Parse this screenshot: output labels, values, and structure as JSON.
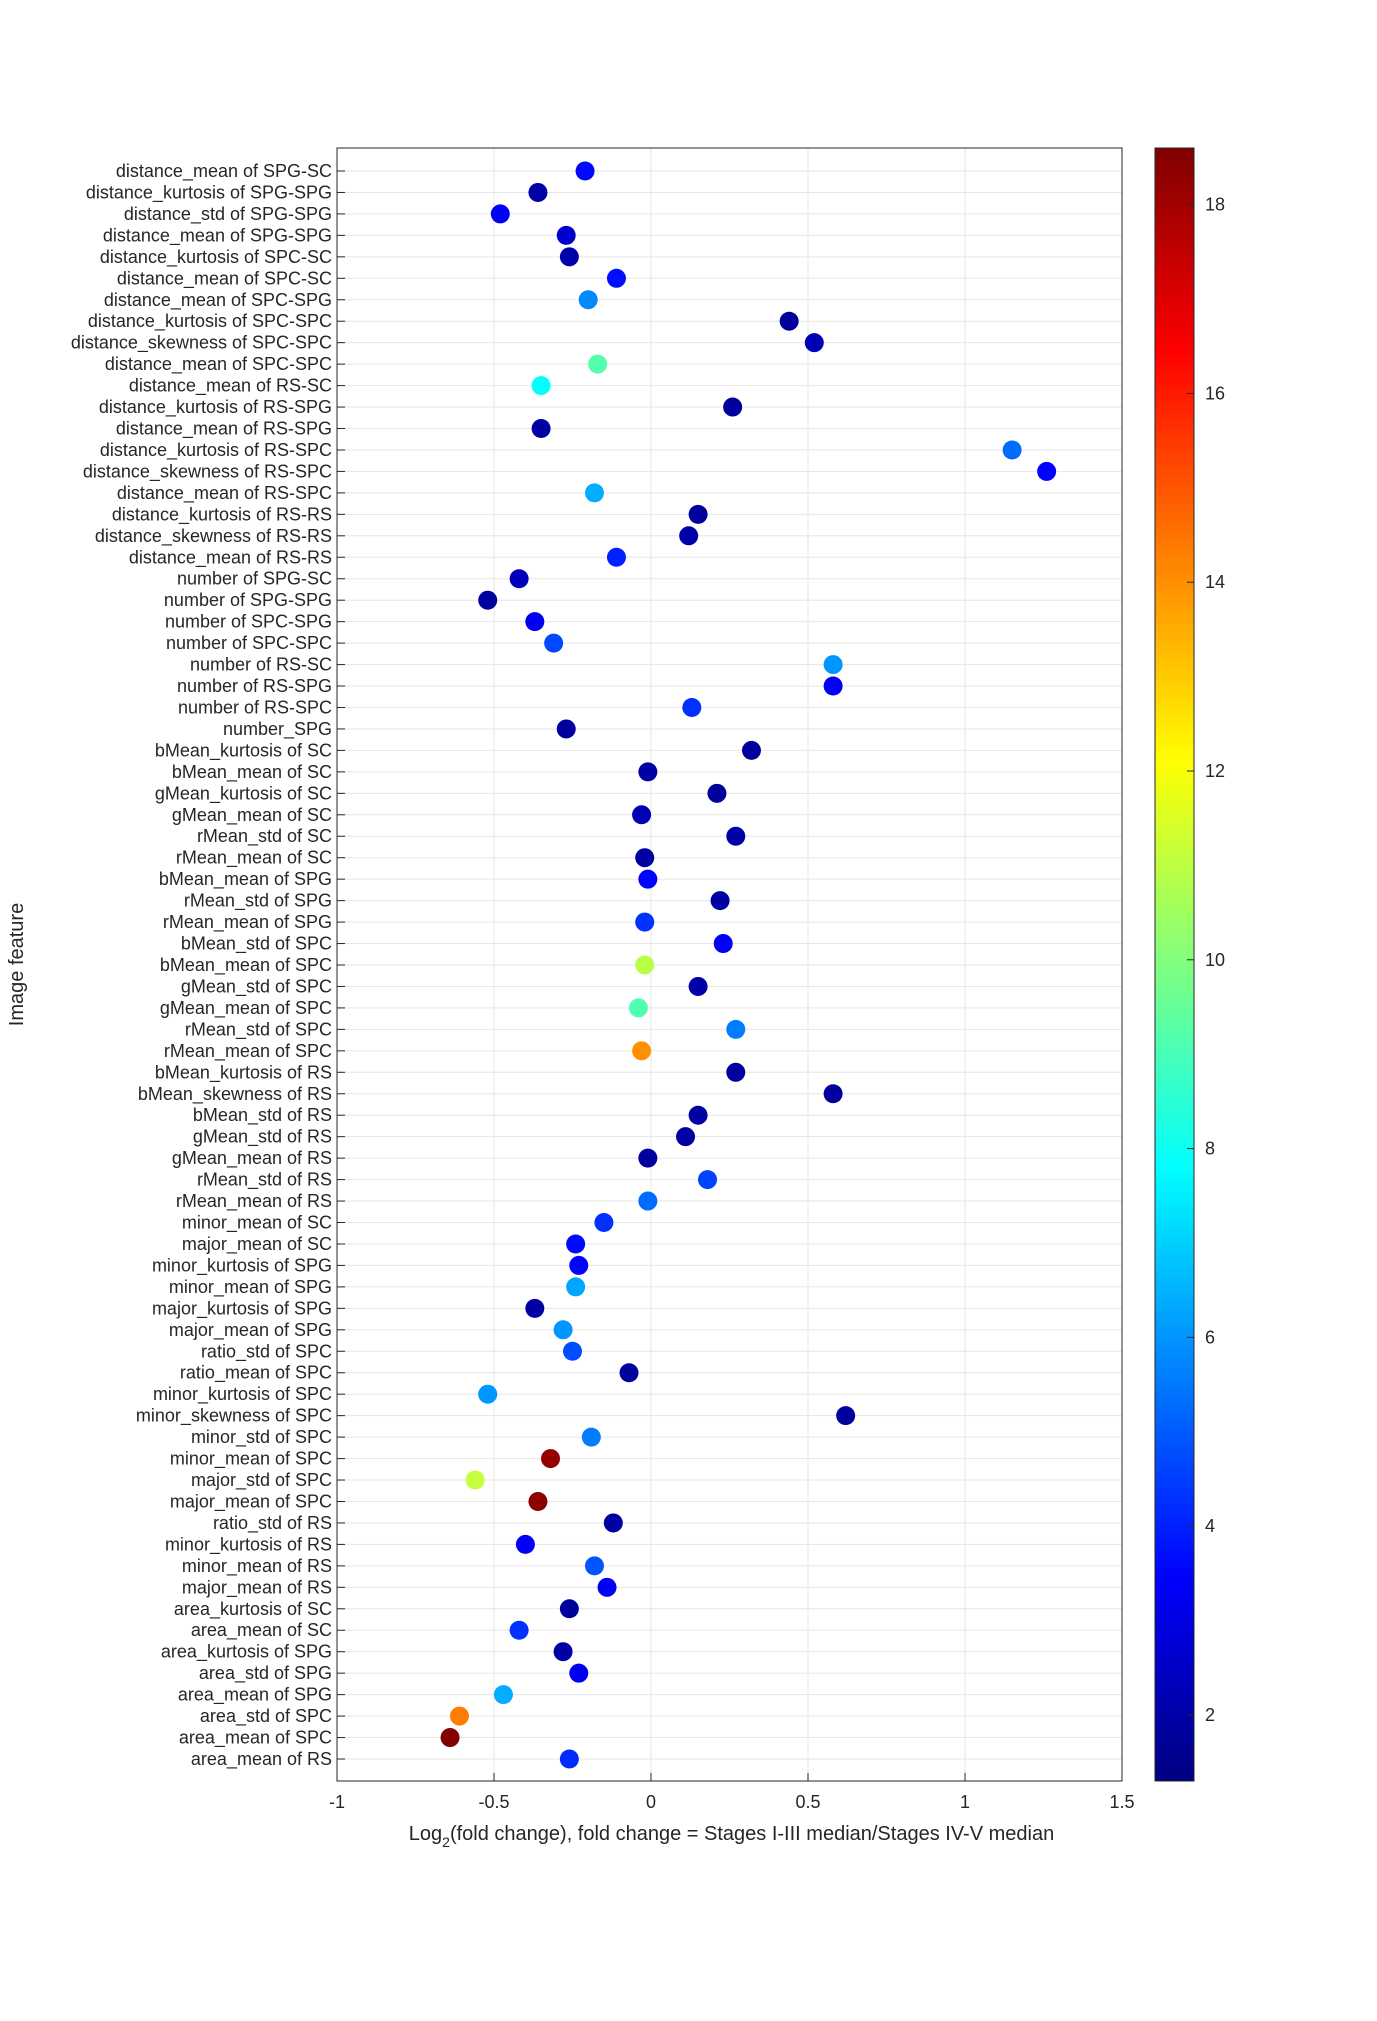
{
  "chart_data": {
    "type": "scatter",
    "xlabel": "Log2(fold change), fold change = Stages I-III median/Stages IV-V median",
    "xlabel_main": "Log",
    "xlabel_sub": "2",
    "xlabel_rest": "(fold change), fold change = Stages I-III median/Stages IV-V median",
    "ylabel": "Image feature",
    "xlim": [
      -1,
      1.5
    ],
    "xticks": [
      -1,
      -0.5,
      0,
      0.5,
      1,
      1.5
    ],
    "xtick_labels": [
      "-1",
      "-0.5",
      "0",
      "0.5",
      "1",
      "1.5"
    ],
    "grid": true,
    "colormap": "jet",
    "colorbar": {
      "range": [
        1.3,
        18.6
      ],
      "ticks": [
        2,
        4,
        6,
        8,
        10,
        12,
        14,
        16,
        18
      ],
      "tick_labels": [
        "2",
        "4",
        "6",
        "8",
        "10",
        "12",
        "14",
        "16",
        "18"
      ]
    },
    "points": [
      {
        "label": "distance_mean of SPG-SC",
        "x": -0.21,
        "c": 3.6
      },
      {
        "label": "distance_kurtosis of SPG-SPG",
        "x": -0.36,
        "c": 2.0
      },
      {
        "label": "distance_std of SPG-SPG",
        "x": -0.48,
        "c": 3.4
      },
      {
        "label": "distance_mean of SPG-SPG",
        "x": -0.27,
        "c": 2.6
      },
      {
        "label": "distance_kurtosis of SPC-SC",
        "x": -0.26,
        "c": 2.0
      },
      {
        "label": "distance_mean of SPC-SC",
        "x": -0.11,
        "c": 3.7
      },
      {
        "label": "distance_mean of SPC-SPG",
        "x": -0.2,
        "c": 5.8
      },
      {
        "label": "distance_kurtosis of SPC-SPC",
        "x": 0.44,
        "c": 1.8
      },
      {
        "label": "distance_skewness of SPC-SPC",
        "x": 0.52,
        "c": 2.2
      },
      {
        "label": "distance_mean of SPC-SPC",
        "x": -0.17,
        "c": 9.2
      },
      {
        "label": "distance_mean of RS-SC",
        "x": -0.35,
        "c": 7.8
      },
      {
        "label": "distance_kurtosis of RS-SPG",
        "x": 0.26,
        "c": 1.8
      },
      {
        "label": "distance_mean of RS-SPG",
        "x": -0.35,
        "c": 1.9
      },
      {
        "label": "distance_kurtosis of RS-SPC",
        "x": 1.15,
        "c": 5.3
      },
      {
        "label": "distance_skewness of RS-SPC",
        "x": 1.26,
        "c": 3.5
      },
      {
        "label": "distance_mean of RS-SPC",
        "x": -0.18,
        "c": 6.4
      },
      {
        "label": "distance_kurtosis of RS-RS",
        "x": 0.15,
        "c": 1.8
      },
      {
        "label": "distance_skewness of RS-RS",
        "x": 0.12,
        "c": 2.0
      },
      {
        "label": "distance_mean of RS-RS",
        "x": -0.11,
        "c": 4.0
      },
      {
        "label": "number of SPG-SC",
        "x": -0.42,
        "c": 2.3
      },
      {
        "label": "number of SPG-SPG",
        "x": -0.52,
        "c": 1.8
      },
      {
        "label": "number of SPC-SPG",
        "x": -0.37,
        "c": 3.2
      },
      {
        "label": "number of SPC-SPC",
        "x": -0.31,
        "c": 4.7
      },
      {
        "label": "number of RS-SC",
        "x": 0.58,
        "c": 6.0
      },
      {
        "label": "number of RS-SPG",
        "x": 0.58,
        "c": 3.4
      },
      {
        "label": "number of RS-SPC",
        "x": 0.13,
        "c": 4.3
      },
      {
        "label": "number_SPG",
        "x": -0.27,
        "c": 1.8
      },
      {
        "label": "bMean_kurtosis of SC",
        "x": 0.32,
        "c": 1.8
      },
      {
        "label": "bMean_mean of SC",
        "x": -0.01,
        "c": 1.9
      },
      {
        "label": "gMean_kurtosis of SC",
        "x": 0.21,
        "c": 1.8
      },
      {
        "label": "gMean_mean of SC",
        "x": -0.03,
        "c": 2.2
      },
      {
        "label": "rMean_std of SC",
        "x": 0.27,
        "c": 2.0
      },
      {
        "label": "rMean_mean of SC",
        "x": -0.02,
        "c": 1.9
      },
      {
        "label": "bMean_mean of SPG",
        "x": -0.01,
        "c": 3.5
      },
      {
        "label": "rMean_std of SPG",
        "x": 0.22,
        "c": 1.9
      },
      {
        "label": "rMean_mean of SPG",
        "x": -0.02,
        "c": 4.3
      },
      {
        "label": "bMean_std of SPC",
        "x": 0.23,
        "c": 3.4
      },
      {
        "label": "bMean_mean of SPC",
        "x": -0.02,
        "c": 10.9
      },
      {
        "label": "gMean_std of SPC",
        "x": 0.15,
        "c": 2.0
      },
      {
        "label": "gMean_mean of SPC",
        "x": -0.04,
        "c": 9.1
      },
      {
        "label": "rMean_std of SPC",
        "x": 0.27,
        "c": 5.6
      },
      {
        "label": "rMean_mean of SPC",
        "x": -0.03,
        "c": 14.0
      },
      {
        "label": "bMean_kurtosis of RS",
        "x": 0.27,
        "c": 1.8
      },
      {
        "label": "bMean_skewness of RS",
        "x": 0.58,
        "c": 1.8
      },
      {
        "label": "bMean_std of RS",
        "x": 0.15,
        "c": 1.9
      },
      {
        "label": "gMean_std of RS",
        "x": 0.11,
        "c": 1.9
      },
      {
        "label": "gMean_mean of RS",
        "x": -0.01,
        "c": 1.8
      },
      {
        "label": "rMean_std of RS",
        "x": 0.18,
        "c": 4.6
      },
      {
        "label": "rMean_mean of RS",
        "x": -0.01,
        "c": 5.3
      },
      {
        "label": "minor_mean of SC",
        "x": -0.15,
        "c": 4.3
      },
      {
        "label": "major_mean of SC",
        "x": -0.24,
        "c": 3.6
      },
      {
        "label": "minor_kurtosis of SPG",
        "x": -0.23,
        "c": 3.5
      },
      {
        "label": "minor_mean of SPG",
        "x": -0.24,
        "c": 6.3
      },
      {
        "label": "major_kurtosis of SPG",
        "x": -0.37,
        "c": 1.9
      },
      {
        "label": "major_mean of SPG",
        "x": -0.28,
        "c": 6.0
      },
      {
        "label": "ratio_std of SPC",
        "x": -0.25,
        "c": 4.8
      },
      {
        "label": "ratio_mean of SPC",
        "x": -0.07,
        "c": 1.8
      },
      {
        "label": "minor_kurtosis of SPC",
        "x": -0.52,
        "c": 6.0
      },
      {
        "label": "minor_skewness of SPC",
        "x": 0.62,
        "c": 1.8
      },
      {
        "label": "minor_std of SPC",
        "x": -0.19,
        "c": 5.6
      },
      {
        "label": "minor_mean of SPC",
        "x": -0.32,
        "c": 18.2
      },
      {
        "label": "major_std of SPC",
        "x": -0.56,
        "c": 11.1
      },
      {
        "label": "major_mean of SPC",
        "x": -0.36,
        "c": 18.4
      },
      {
        "label": "ratio_std of RS",
        "x": -0.12,
        "c": 1.9
      },
      {
        "label": "minor_kurtosis of RS",
        "x": -0.4,
        "c": 3.3
      },
      {
        "label": "minor_mean of RS",
        "x": -0.18,
        "c": 4.9
      },
      {
        "label": "major_mean of RS",
        "x": -0.14,
        "c": 3.3
      },
      {
        "label": "area_kurtosis of SC",
        "x": -0.26,
        "c": 1.8
      },
      {
        "label": "area_mean of SC",
        "x": -0.42,
        "c": 4.3
      },
      {
        "label": "area_kurtosis of SPG",
        "x": -0.28,
        "c": 1.9
      },
      {
        "label": "area_std of SPG",
        "x": -0.23,
        "c": 3.2
      },
      {
        "label": "area_mean of SPG",
        "x": -0.47,
        "c": 6.4
      },
      {
        "label": "area_std of SPC",
        "x": -0.61,
        "c": 14.3
      },
      {
        "label": "area_mean of SPC",
        "x": -0.64,
        "c": 18.5
      },
      {
        "label": "area_mean of RS",
        "x": -0.26,
        "c": 4.2
      }
    ]
  }
}
